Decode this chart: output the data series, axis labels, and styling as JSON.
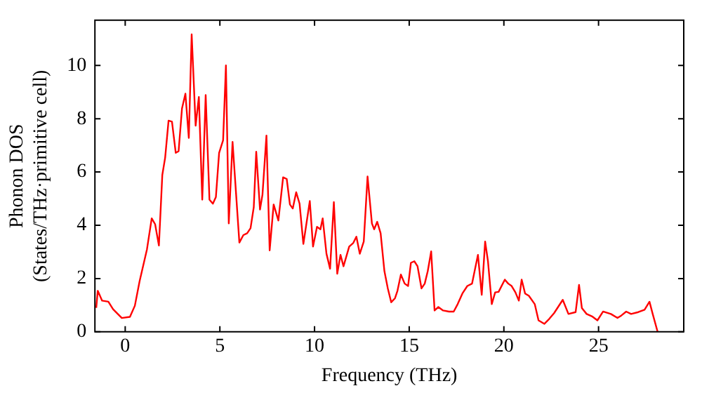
{
  "chart_data": {
    "type": "line",
    "xlabel": "Frequency (THz)",
    "ylabel": "Phonon DOS\n(States/THz·primitive cell)",
    "xlim": [
      -1.6,
      29.5
    ],
    "ylim": [
      0,
      11.7
    ],
    "xticks": [
      0,
      5,
      10,
      15,
      20,
      25
    ],
    "yticks": [
      0,
      2,
      4,
      6,
      8,
      10
    ],
    "grid": false,
    "legend": false,
    "marker": "none",
    "line_style": "solid",
    "series": [
      {
        "color": "#ff0000",
        "x": [
          -1.53,
          -1.45,
          -1.22,
          -0.89,
          -0.64,
          -0.18,
          0.25,
          0.51,
          0.76,
          1.15,
          1.4,
          1.58,
          1.78,
          1.96,
          2.11,
          2.29,
          2.47,
          2.67,
          2.82,
          3.0,
          3.18,
          3.36,
          3.51,
          3.72,
          3.89,
          4.07,
          4.25,
          4.45,
          4.63,
          4.79,
          4.96,
          5.17,
          5.32,
          5.47,
          5.67,
          6.03,
          6.24,
          6.44,
          6.62,
          6.79,
          6.92,
          7.12,
          7.25,
          7.46,
          7.63,
          7.84,
          8.09,
          8.34,
          8.53,
          8.7,
          8.85,
          9.03,
          9.21,
          9.41,
          9.75,
          9.92,
          10.13,
          10.31,
          10.43,
          10.63,
          10.82,
          11.02,
          11.2,
          11.37,
          11.53,
          11.83,
          12.04,
          12.21,
          12.39,
          12.6,
          12.8,
          13.03,
          13.15,
          13.31,
          13.49,
          13.69,
          13.87,
          14.05,
          14.25,
          14.38,
          14.56,
          14.76,
          14.94,
          15.09,
          15.27,
          15.44,
          15.65,
          15.82,
          15.98,
          16.16,
          16.34,
          16.54,
          16.79,
          17.1,
          17.35,
          17.56,
          17.81,
          18.07,
          18.32,
          18.63,
          18.83,
          19.01,
          19.16,
          19.36,
          19.54,
          19.72,
          20.05,
          20.23,
          20.41,
          20.61,
          20.79,
          20.94,
          21.12,
          21.32,
          21.63,
          21.83,
          22.14,
          22.39,
          22.65,
          23.11,
          23.41,
          23.79,
          23.97,
          24.12,
          24.37,
          24.68,
          24.94,
          25.24,
          25.65,
          26.0,
          26.2,
          26.46,
          26.72,
          27.1,
          27.43,
          27.69,
          27.86,
          28.12
        ],
        "values": [
          0.9,
          1.54,
          1.17,
          1.13,
          0.85,
          0.52,
          0.56,
          0.98,
          1.9,
          3.1,
          4.26,
          4.04,
          3.24,
          5.89,
          6.54,
          7.93,
          7.89,
          6.72,
          6.78,
          8.39,
          8.94,
          7.28,
          11.17,
          7.74,
          8.82,
          4.96,
          8.89,
          4.96,
          4.81,
          5.06,
          6.72,
          7.19,
          10.0,
          4.07,
          7.13,
          3.35,
          3.63,
          3.7,
          3.89,
          4.68,
          6.76,
          4.59,
          5.15,
          7.37,
          3.06,
          4.78,
          4.18,
          5.8,
          5.74,
          4.78,
          4.63,
          5.24,
          4.81,
          3.3,
          4.91,
          3.2,
          3.94,
          3.85,
          4.26,
          2.93,
          2.37,
          4.87,
          2.18,
          2.89,
          2.46,
          3.2,
          3.33,
          3.57,
          2.93,
          3.39,
          5.83,
          4.07,
          3.85,
          4.13,
          3.7,
          2.28,
          1.63,
          1.11,
          1.26,
          1.54,
          2.15,
          1.81,
          1.72,
          2.59,
          2.65,
          2.46,
          1.63,
          1.81,
          2.28,
          3.02,
          0.8,
          0.93,
          0.8,
          0.76,
          0.76,
          1.04,
          1.44,
          1.72,
          1.81,
          2.89,
          1.39,
          3.39,
          2.65,
          1.04,
          1.48,
          1.5,
          1.96,
          1.81,
          1.72,
          1.48,
          1.17,
          1.96,
          1.44,
          1.35,
          1.04,
          0.43,
          0.3,
          0.48,
          0.7,
          1.2,
          0.67,
          0.74,
          1.76,
          0.89,
          0.67,
          0.57,
          0.43,
          0.76,
          0.67,
          0.52,
          0.61,
          0.76,
          0.67,
          0.74,
          0.83,
          1.13,
          0.67,
          0
        ]
      }
    ]
  }
}
